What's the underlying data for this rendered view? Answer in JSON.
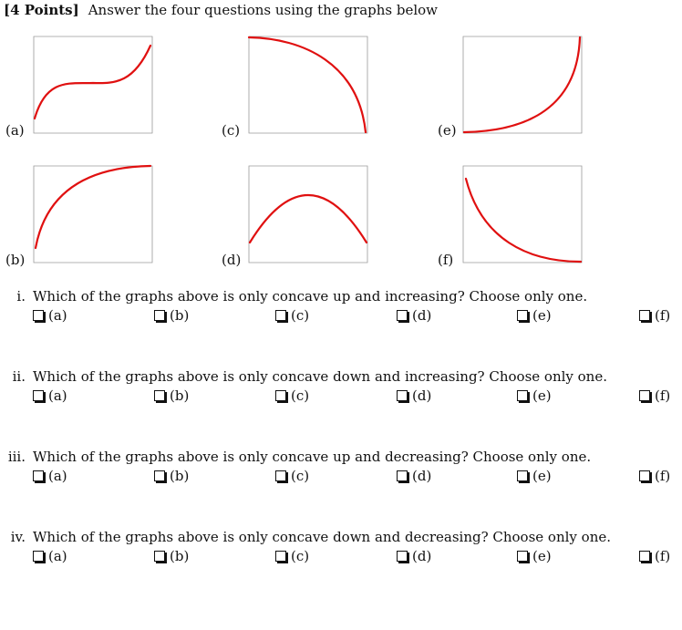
{
  "header": {
    "points_label": "[4 Points]",
    "instruction": "Answer the four questions using the graphs below"
  },
  "graphs": [
    {
      "label": "(a)"
    },
    {
      "label": "(c)"
    },
    {
      "label": "(e)"
    },
    {
      "label": "(b)"
    },
    {
      "label": "(d)"
    },
    {
      "label": "(f)"
    }
  ],
  "curve_color": "#e01010",
  "questions": [
    {
      "number": "i.",
      "text": "Which of the graphs above is only concave up and increasing? Choose only one.",
      "options": [
        "(a)",
        "(b)",
        "(c)",
        "(d)",
        "(e)",
        "(f)"
      ]
    },
    {
      "number": "ii.",
      "text": "Which of the graphs above is only concave down and increasing? Choose only one.",
      "options": [
        "(a)",
        "(b)",
        "(c)",
        "(d)",
        "(e)",
        "(f)"
      ]
    },
    {
      "number": "iii.",
      "text": "Which of the graphs above is only concave up and decreasing? Choose only one.",
      "options": [
        "(a)",
        "(b)",
        "(c)",
        "(d)",
        "(e)",
        "(f)"
      ]
    },
    {
      "number": "iv.",
      "text": "Which of the graphs above is only concave down and decreasing? Choose only one.",
      "options": [
        "(a)",
        "(b)",
        "(c)",
        "(d)",
        "(e)",
        "(f)"
      ]
    }
  ]
}
